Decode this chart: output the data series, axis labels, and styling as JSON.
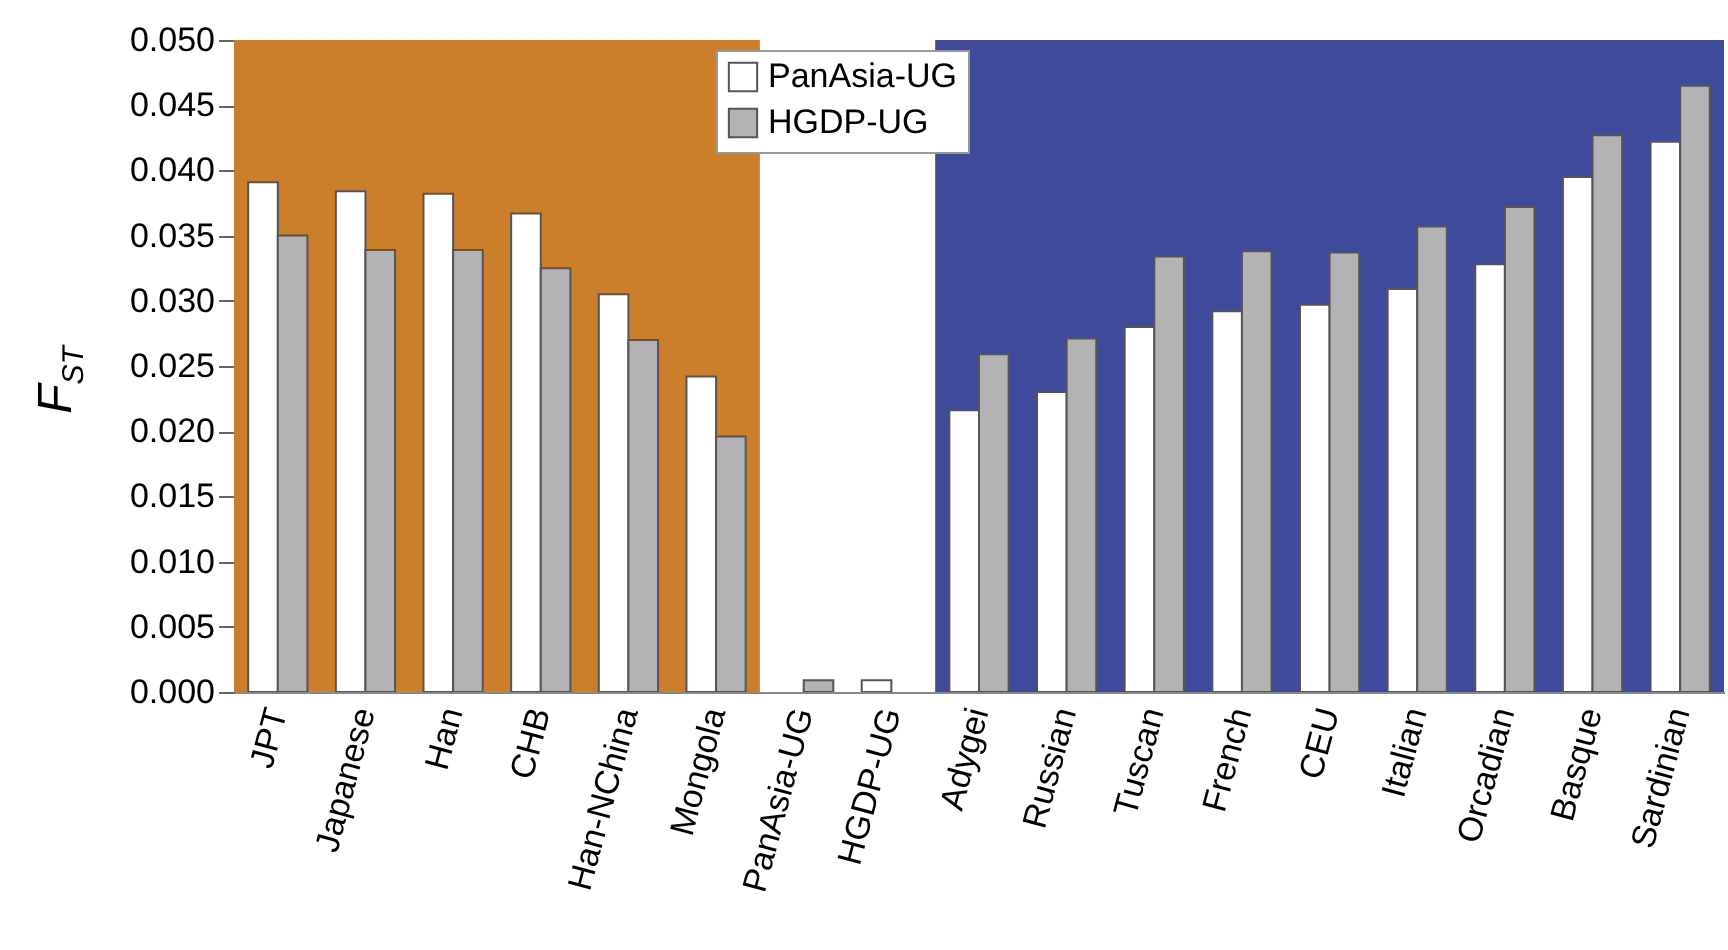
{
  "chart_data": {
    "type": "bar",
    "ylabel": "F$_{ST}$",
    "categories": [
      "JPT",
      "Japanese",
      "Han",
      "CHB",
      "Han-NChina",
      "Mongola",
      "PanAsia-UG",
      "HGDP-UG",
      "Adygei",
      "Russian",
      "Tuscan",
      "French",
      "CEU",
      "Italian",
      "Orcadian",
      "Basque",
      "Sardinian"
    ],
    "series": [
      {
        "name": "PanAsia-UG",
        "color": "#ffffff",
        "values": [
          0.0391,
          0.0384,
          0.0382,
          0.0367,
          0.0305,
          0.0242,
          null,
          0.0009,
          0.0216,
          0.023,
          0.028,
          0.0292,
          0.0297,
          0.0309,
          0.0328,
          0.0395,
          0.0422
        ]
      },
      {
        "name": "HGDP-UG",
        "color": "#b3b3b6",
        "values": [
          0.035,
          0.0339,
          0.0339,
          0.0325,
          0.027,
          0.0196,
          0.0009,
          null,
          0.0259,
          0.0271,
          0.0334,
          0.0338,
          0.0337,
          0.0357,
          0.0372,
          0.0427,
          0.0465
        ]
      }
    ],
    "ylim": [
      0,
      0.05
    ],
    "yticks": [
      {
        "value": 0,
        "label": "0.000"
      },
      {
        "value": 0.005,
        "label": "0.005"
      },
      {
        "value": 0.01,
        "label": "0.010"
      },
      {
        "value": 0.015,
        "label": "0.015"
      },
      {
        "value": 0.02,
        "label": "0.020"
      },
      {
        "value": 0.025,
        "label": "0.025"
      },
      {
        "value": 0.03,
        "label": "0.030"
      },
      {
        "value": 0.035,
        "label": "0.035"
      },
      {
        "value": 0.04,
        "label": "0.040"
      },
      {
        "value": 0.045,
        "label": "0.045"
      },
      {
        "value": 0.05,
        "label": "0.050"
      }
    ],
    "bands": [
      {
        "axis": "x",
        "from": "JPT",
        "to": "Mongola",
        "color": "#cc7f2a"
      },
      {
        "axis": "x",
        "from": "Adygei",
        "to": "Sardinian",
        "color": "#3f4a9b"
      }
    ],
    "legend": "top",
    "grid": false
  }
}
